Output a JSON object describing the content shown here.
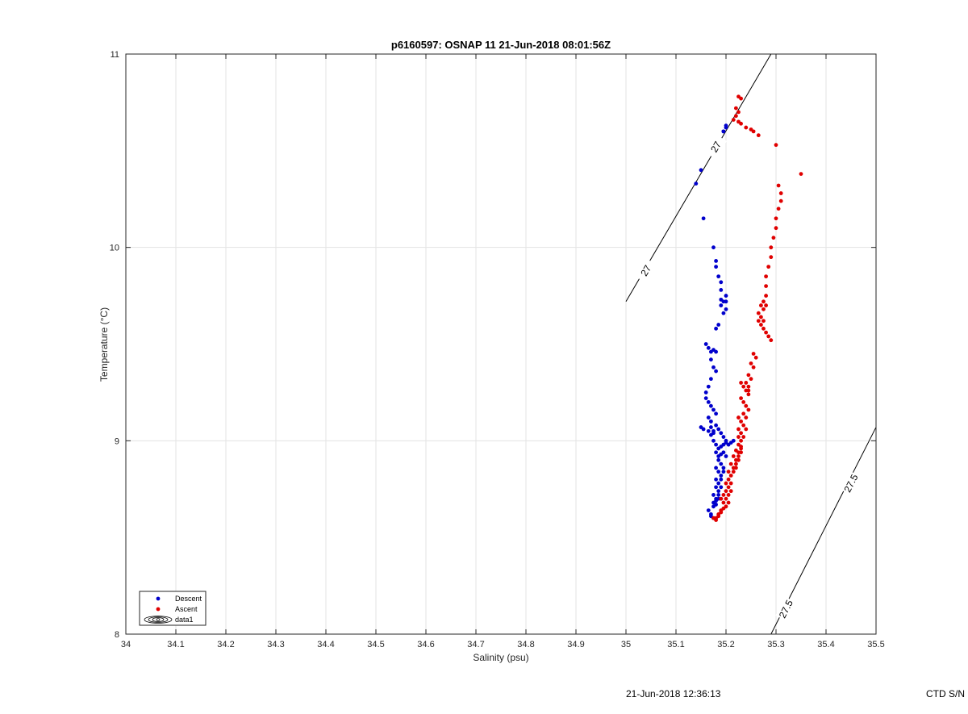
{
  "chart_data": {
    "type": "scatter",
    "title": "p6160597: OSNAP 11 21-Jun-2018 08:01:56Z",
    "xlabel": "Salinity (psu)",
    "ylabel": "Temperature (°C)",
    "xlim": [
      34,
      35.5
    ],
    "ylim": [
      8,
      11
    ],
    "xticks": [
      "34",
      "34.1",
      "34.2",
      "34.3",
      "34.4",
      "34.5",
      "34.6",
      "34.7",
      "34.8",
      "34.9",
      "35",
      "35.1",
      "35.2",
      "35.3",
      "35.4",
      "35.5"
    ],
    "yticks": [
      "8",
      "9",
      "10",
      "11"
    ],
    "grid": true,
    "legend": {
      "placement": "bottom-left",
      "entries": [
        {
          "label": "Descent",
          "color": "#0000cc",
          "marker": "dot"
        },
        {
          "label": "Ascent",
          "color": "#e00000",
          "marker": "dot"
        },
        {
          "label": "data1",
          "color": "#000000",
          "marker": "contour"
        }
      ]
    },
    "contours": [
      {
        "label": "27",
        "points": [
          [
            35.0,
            9.72
          ],
          [
            35.29,
            11.0
          ]
        ],
        "label_positions": [
          [
            35.04,
            9.88
          ],
          [
            35.18,
            10.52
          ]
        ]
      },
      {
        "label": "27.5",
        "points": [
          [
            35.29,
            8.0
          ],
          [
            35.5,
            9.07
          ]
        ],
        "label_positions": [
          [
            35.32,
            8.13
          ],
          [
            35.45,
            8.78
          ]
        ]
      }
    ],
    "series": [
      {
        "name": "Descent",
        "color": "#0000cc",
        "x": [
          35.14,
          35.15,
          35.195,
          35.2,
          35.2,
          35.195,
          35.155,
          35.175,
          35.18,
          35.18,
          35.185,
          35.19,
          35.19,
          35.19,
          35.19,
          35.195,
          35.2,
          35.2,
          35.2,
          35.195,
          35.185,
          35.18,
          35.16,
          35.165,
          35.17,
          35.175,
          35.18,
          35.17,
          35.175,
          35.18,
          35.17,
          35.165,
          35.16,
          35.16,
          35.165,
          35.17,
          35.175,
          35.18,
          35.165,
          35.17,
          35.17,
          35.175,
          35.18,
          35.17,
          35.175,
          35.18,
          35.15,
          35.155,
          35.165,
          35.175,
          35.185,
          35.19,
          35.195,
          35.2,
          35.185,
          35.19,
          35.195,
          35.2,
          35.205,
          35.21,
          35.215,
          35.18,
          35.185,
          35.19,
          35.195,
          35.2,
          35.185,
          35.19,
          35.195,
          35.18,
          35.185,
          35.19,
          35.195,
          35.18,
          35.185,
          35.19,
          35.18,
          35.185,
          35.19,
          35.175,
          35.18,
          35.185,
          35.19,
          35.175,
          35.18,
          35.185,
          35.175,
          35.18,
          35.165,
          35.17,
          35.175,
          35.17
        ],
        "y": [
          10.33,
          10.4,
          10.6,
          10.62,
          10.63,
          10.6,
          10.15,
          10.0,
          9.93,
          9.9,
          9.85,
          9.82,
          9.78,
          9.73,
          9.7,
          9.72,
          9.75,
          9.68,
          9.72,
          9.66,
          9.6,
          9.58,
          9.5,
          9.48,
          9.46,
          9.47,
          9.46,
          9.42,
          9.38,
          9.36,
          9.32,
          9.28,
          9.25,
          9.22,
          9.2,
          9.18,
          9.16,
          9.14,
          9.12,
          9.1,
          9.07,
          9.05,
          9.08,
          9.03,
          9.0,
          8.98,
          9.07,
          9.06,
          9.05,
          9.04,
          9.06,
          9.04,
          9.02,
          9.0,
          8.96,
          8.97,
          8.98,
          8.99,
          8.98,
          8.99,
          9.0,
          8.94,
          8.92,
          8.93,
          8.94,
          8.92,
          8.9,
          8.88,
          8.86,
          8.86,
          8.84,
          8.82,
          8.84,
          8.8,
          8.78,
          8.8,
          8.76,
          8.74,
          8.76,
          8.72,
          8.7,
          8.72,
          8.7,
          8.68,
          8.69,
          8.7,
          8.66,
          8.67,
          8.64,
          8.62,
          8.6,
          8.61
        ]
      },
      {
        "name": "Ascent",
        "color": "#e00000",
        "x": [
          35.225,
          35.23,
          35.22,
          35.225,
          35.22,
          35.215,
          35.225,
          35.23,
          35.24,
          35.25,
          35.255,
          35.265,
          35.3,
          35.35,
          35.305,
          35.31,
          35.31,
          35.305,
          35.3,
          35.3,
          35.295,
          35.29,
          35.29,
          35.285,
          35.28,
          35.28,
          35.28,
          35.275,
          35.27,
          35.275,
          35.28,
          35.265,
          35.27,
          35.275,
          35.265,
          35.27,
          35.275,
          35.28,
          35.285,
          35.29,
          35.255,
          35.26,
          35.25,
          35.255,
          35.245,
          35.25,
          35.24,
          35.245,
          35.245,
          35.23,
          35.235,
          35.24,
          35.245,
          35.23,
          35.235,
          35.24,
          35.245,
          35.235,
          35.24,
          35.225,
          35.23,
          35.235,
          35.24,
          35.225,
          35.23,
          35.235,
          35.225,
          35.23,
          35.225,
          35.23,
          35.22,
          35.225,
          35.23,
          35.215,
          35.22,
          35.225,
          35.23,
          35.21,
          35.215,
          35.22,
          35.225,
          35.205,
          35.21,
          35.215,
          35.22,
          35.205,
          35.21,
          35.2,
          35.205,
          35.21,
          35.2,
          35.205,
          35.195,
          35.2,
          35.205,
          35.19,
          35.195,
          35.2,
          35.19,
          35.195,
          35.185,
          35.19,
          35.18,
          35.185,
          35.175,
          35.18
        ],
        "y": [
          10.78,
          10.77,
          10.72,
          10.7,
          10.68,
          10.66,
          10.65,
          10.64,
          10.62,
          10.61,
          10.6,
          10.58,
          10.53,
          10.38,
          10.32,
          10.28,
          10.24,
          10.2,
          10.15,
          10.1,
          10.05,
          10.0,
          9.95,
          9.9,
          9.85,
          9.8,
          9.75,
          9.72,
          9.7,
          9.68,
          9.7,
          9.66,
          9.64,
          9.62,
          9.62,
          9.6,
          9.58,
          9.56,
          9.54,
          9.52,
          9.45,
          9.43,
          9.4,
          9.38,
          9.34,
          9.32,
          9.3,
          9.28,
          9.26,
          9.3,
          9.28,
          9.26,
          9.24,
          9.22,
          9.2,
          9.18,
          9.16,
          9.14,
          9.12,
          9.12,
          9.1,
          9.08,
          9.06,
          9.06,
          9.04,
          9.02,
          9.02,
          9.0,
          8.98,
          8.97,
          8.95,
          8.94,
          8.96,
          8.92,
          8.9,
          8.92,
          8.94,
          8.88,
          8.86,
          8.88,
          8.9,
          8.84,
          8.82,
          8.84,
          8.86,
          8.8,
          8.78,
          8.78,
          8.76,
          8.74,
          8.74,
          8.72,
          8.72,
          8.7,
          8.68,
          8.7,
          8.68,
          8.66,
          8.64,
          8.65,
          8.62,
          8.63,
          8.6,
          8.61,
          8.6,
          8.59
        ]
      }
    ]
  },
  "footer": {
    "timestamp": "21-Jun-2018 12:36:13",
    "instrument": "CTD S/N"
  }
}
